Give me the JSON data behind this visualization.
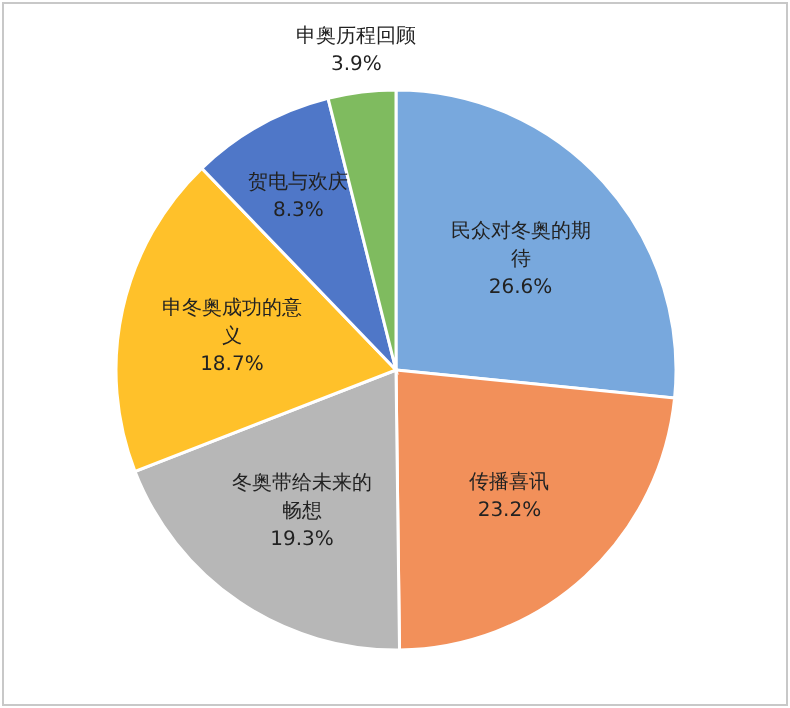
{
  "chart_data": {
    "type": "pie",
    "categories": [
      "民众对冬奥的期待",
      "传播喜讯",
      "冬奥带给未来的畅想",
      "申冬奥成功的意义",
      "贺电与欢庆",
      "申奥历程回顾"
    ],
    "values": [
      26.6,
      23.2,
      19.3,
      18.7,
      8.3,
      3.9
    ],
    "value_labels": [
      "26.6%",
      "23.2%",
      "19.3%",
      "18.7%",
      "8.3%",
      "3.9%"
    ],
    "colors": [
      "#78a8dd",
      "#f2905a",
      "#b7b7b7",
      "#ffc12a",
      "#4f77c8",
      "#7fbb5f"
    ]
  }
}
